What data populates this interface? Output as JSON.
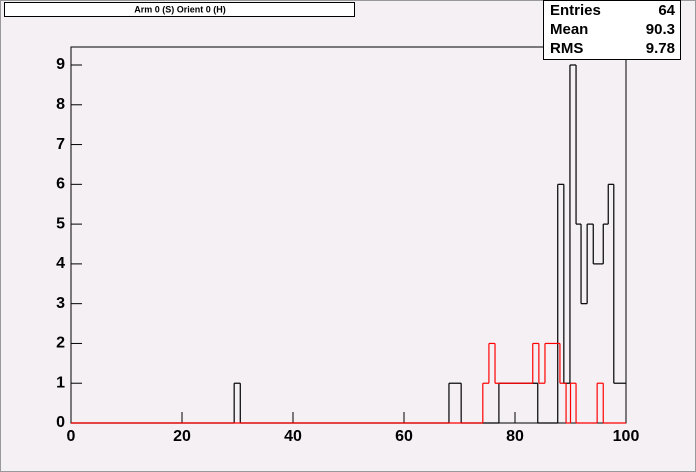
{
  "chart_data": {
    "type": "histogram",
    "title": "Arm 0 (S) Orient 0 (H)",
    "stats": [
      {
        "label": "Entries",
        "value": 64
      },
      {
        "label": "Mean",
        "value": 90.3
      },
      {
        "label": "RMS",
        "value": 9.78
      }
    ],
    "xlim": [
      0,
      100
    ],
    "ylim": [
      0,
      9
    ],
    "xticks": [
      0,
      20,
      40,
      60,
      80,
      100
    ],
    "yticks": [
      0,
      1,
      2,
      3,
      4,
      5,
      6,
      7,
      8,
      9
    ],
    "series": [
      {
        "color": "#000000",
        "bins": [
          0,
          29.4,
          30.5,
          68.1,
          70.3,
          77.1,
          84.1,
          87.7,
          88.8,
          89.9,
          91.0,
          91.9,
          93.0,
          94.1,
          95.9,
          96.8,
          97.8,
          100
        ],
        "values": [
          0,
          1,
          0,
          1,
          0,
          1,
          0,
          6,
          1,
          9,
          5,
          3,
          5,
          4,
          5,
          6,
          1
        ]
      },
      {
        "color": "#ff0000",
        "bins": [
          0,
          74.2,
          75.3,
          76.4,
          83.2,
          84.3,
          85.4,
          88.1,
          89.2,
          90.0,
          91.0,
          94.8,
          95.9,
          100
        ],
        "values": [
          0,
          1,
          2,
          1,
          2,
          1,
          2,
          1,
          0,
          1,
          0,
          1,
          0
        ]
      }
    ]
  }
}
